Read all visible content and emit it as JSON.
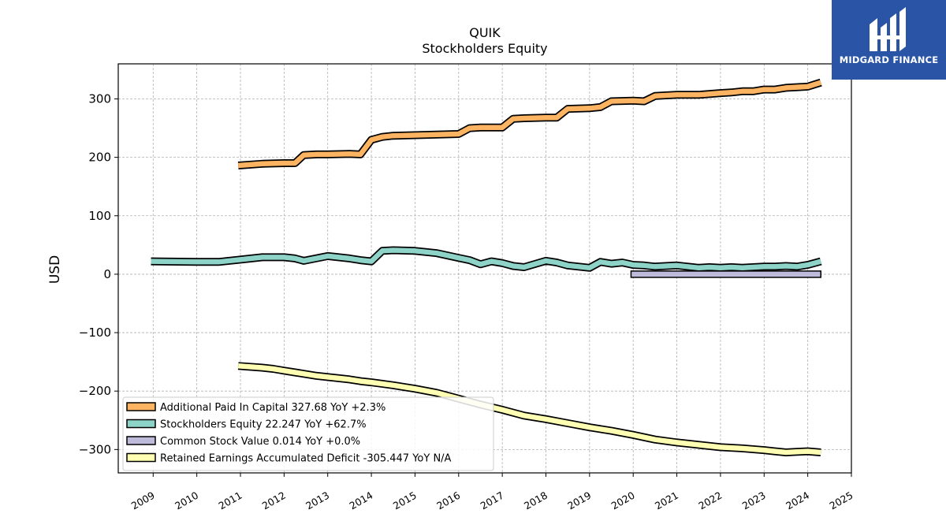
{
  "chart_data": {
    "type": "line",
    "title": "QUIK",
    "subtitle": "Stockholders  Equity",
    "ylabel": "USD",
    "xlabel": "",
    "xlim": [
      2008.2,
      2025.0
    ],
    "ylim": [
      -340,
      360
    ],
    "yticks": [
      300,
      200,
      100,
      0,
      -100,
      -200,
      -300
    ],
    "ytick_labels": [
      "300",
      "200",
      "100",
      "0",
      "−100",
      "−200",
      "−300"
    ],
    "xticks": [
      2009,
      2010,
      2011,
      2012,
      2013,
      2014,
      2015,
      2016,
      2017,
      2018,
      2019,
      2020,
      2021,
      2022,
      2023,
      2024,
      2025
    ],
    "xtick_labels": [
      "2009",
      "2010",
      "2011",
      "2012",
      "2013",
      "2014",
      "2015",
      "2016",
      "2017",
      "2018",
      "2019",
      "2020",
      "2021",
      "2022",
      "2023",
      "2024",
      "2025"
    ],
    "grid": true,
    "legend_position": "lower-left",
    "series": [
      {
        "name": "Additional Paid In Capital",
        "legend": "Additional Paid In Capital  327.68 YoY +2.3%",
        "color": "#fdb462",
        "x": [
          2010.95,
          2011.5,
          2012.0,
          2012.25,
          2012.45,
          2012.75,
          2013.0,
          2013.5,
          2013.75,
          2014.0,
          2014.25,
          2014.5,
          2015.0,
          2015.5,
          2016.0,
          2016.25,
          2016.5,
          2017.0,
          2017.25,
          2017.5,
          2018.0,
          2018.25,
          2018.5,
          2019.0,
          2019.25,
          2019.5,
          2020.0,
          2020.25,
          2020.5,
          2021.0,
          2021.5,
          2022.0,
          2022.25,
          2022.5,
          2022.75,
          2023.0,
          2023.25,
          2023.5,
          2024.0,
          2024.3
        ],
        "y": [
          186,
          189,
          190,
          190,
          204,
          205,
          205,
          206,
          205,
          230,
          235,
          237,
          238,
          239,
          240,
          250,
          251,
          251,
          266,
          267,
          268,
          268,
          283,
          284,
          286,
          296,
          297,
          296,
          305,
          307,
          307,
          310,
          311,
          313,
          313,
          316,
          316,
          319,
          321,
          328
        ]
      },
      {
        "name": "Stockholders Equity",
        "legend": "Stockholders Equity  22.247 YoY +62.7%",
        "color": "#8dd3c7",
        "x": [
          2008.95,
          2010.0,
          2010.5,
          2011.0,
          2011.5,
          2012.0,
          2012.25,
          2012.45,
          2013.0,
          2013.5,
          2013.75,
          2014.0,
          2014.25,
          2014.5,
          2015.0,
          2015.5,
          2016.0,
          2016.25,
          2016.5,
          2016.75,
          2017.0,
          2017.25,
          2017.5,
          2018.0,
          2018.25,
          2018.5,
          2019.0,
          2019.25,
          2019.5,
          2019.75,
          2020.0,
          2020.25,
          2020.5,
          2021.0,
          2021.5,
          2021.75,
          2022.0,
          2022.25,
          2022.5,
          2022.75,
          2023.0,
          2023.25,
          2023.5,
          2023.75,
          2024.0,
          2024.3
        ],
        "y": [
          22,
          21,
          21,
          25,
          29,
          29,
          27,
          23,
          31,
          27,
          24,
          22,
          40,
          41,
          40,
          36,
          28,
          24,
          17,
          22,
          19,
          14,
          12,
          23,
          20,
          15,
          11,
          21,
          18,
          20,
          16,
          15,
          13,
          15,
          11,
          12,
          11,
          12,
          11,
          12,
          13,
          13,
          14,
          13,
          16,
          22
        ]
      },
      {
        "name": "Common Stock Value",
        "legend": "Common Stock Value  0.014 YoY +0.0%",
        "color": "#bebada",
        "x": [
          2019.95,
          2024.3
        ],
        "y": [
          0.014,
          0.014
        ]
      },
      {
        "name": "Retained Earnings Accumulated Deficit",
        "legend": "Retained Earnings Accumulated Deficit  -305.447 YoY N/A",
        "color": "#ffffb3",
        "x": [
          2010.95,
          2011.5,
          2011.75,
          2012.0,
          2012.25,
          2012.5,
          2012.75,
          2013.0,
          2013.5,
          2013.75,
          2014.0,
          2014.5,
          2015.0,
          2015.5,
          2016.0,
          2016.5,
          2017.0,
          2017.5,
          2018.0,
          2018.5,
          2019.0,
          2019.5,
          2020.0,
          2020.5,
          2021.0,
          2021.5,
          2022.0,
          2022.5,
          2023.0,
          2023.25,
          2023.5,
          2023.75,
          2024.0,
          2024.3
        ],
        "y": [
          -157,
          -160,
          -162,
          -165,
          -168,
          -171,
          -174,
          -176,
          -180,
          -183,
          -185,
          -190,
          -196,
          -203,
          -213,
          -223,
          -232,
          -242,
          -248,
          -255,
          -262,
          -268,
          -275,
          -283,
          -288,
          -292,
          -296,
          -298,
          -301,
          -303,
          -305,
          -304,
          -303,
          -305
        ]
      }
    ]
  },
  "brand": {
    "name": "MIDGARD FINANCE",
    "bg_color": "#2a55a6"
  }
}
